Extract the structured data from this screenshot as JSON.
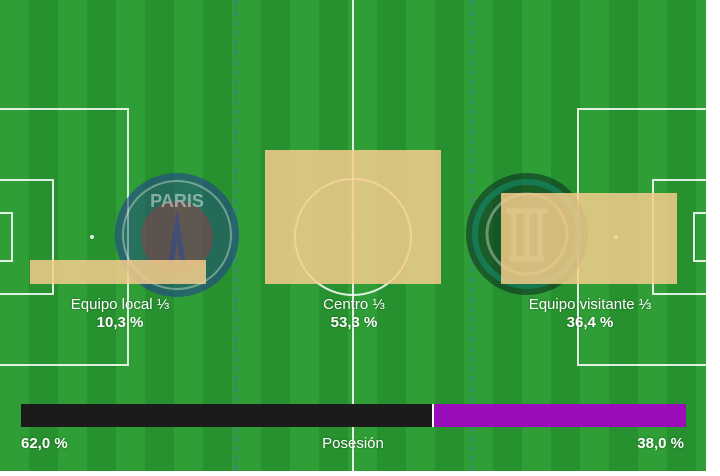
{
  "zones": [
    {
      "label": "Equipo local ⅓",
      "value": "10,3 %",
      "share": 10.3
    },
    {
      "label": "Centro ⅓",
      "value": "53,3 %",
      "share": 53.3
    },
    {
      "label": "Equipo visitante ⅓",
      "value": "36,4 %",
      "share": 36.4
    }
  ],
  "possession": {
    "label": "Posesión",
    "home_value": "62,0 %",
    "away_value": "38,0 %",
    "home_share": 62.0,
    "away_share": 38.0,
    "home_color": "#1b1b1b",
    "away_color": "#9b0db9"
  },
  "logos": {
    "home": {
      "icon": "psg-crest-icon",
      "text": "PARIS"
    },
    "away": {
      "icon": "inter-crest-icon"
    }
  },
  "colors": {
    "pitch": "#2f9e36",
    "zone": "#f5cd8c"
  }
}
